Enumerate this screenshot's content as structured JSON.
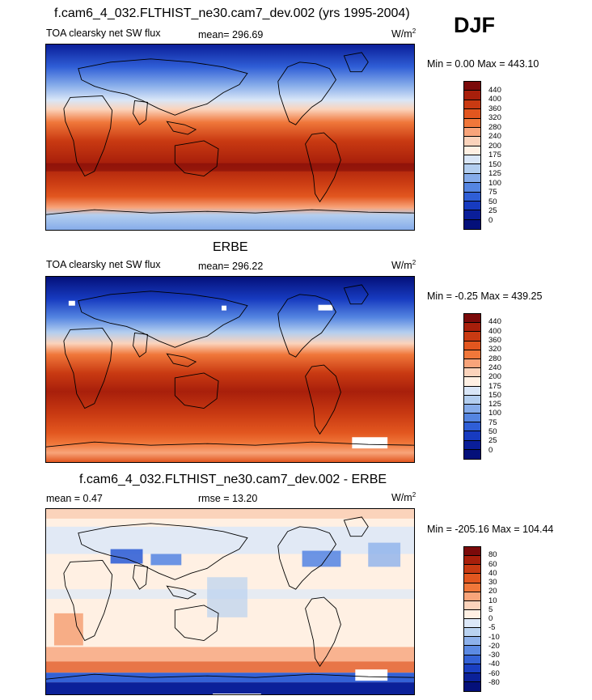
{
  "season": "DJF",
  "panels": [
    {
      "title": "f.cam6_4_032.FLTHIST_ne30.cam7_dev.002 (yrs 1995-2004)",
      "variable": "TOA clearsky net SW flux",
      "stat_left": "",
      "mean_text": "mean= 296.69",
      "units": "W/m",
      "units_sup": "2",
      "minmax": "Min =   0.00 Max = 443.10",
      "colorbar": {
        "labels": [
          "440",
          "400",
          "360",
          "320",
          "280",
          "240",
          "200",
          "175",
          "150",
          "125",
          "100",
          "75",
          "50",
          "25",
          "0"
        ],
        "colors": [
          "#7b0a0a",
          "#a81f0b",
          "#c93a12",
          "#e2561f",
          "#f0773a",
          "#f8a47a",
          "#fbd3bb",
          "#fff0e3",
          "#d9e6f7",
          "#b3ceef",
          "#86acea",
          "#5585e1",
          "#2f5ed6",
          "#173bc0",
          "#0a1e99",
          "#04107a"
        ]
      }
    },
    {
      "title": "ERBE",
      "variable": "TOA clearsky net SW flux",
      "stat_left": "",
      "mean_text": "mean= 296.22",
      "units": "W/m",
      "units_sup": "2",
      "minmax": "Min =  -0.25 Max = 439.25",
      "colorbar": {
        "labels": [
          "440",
          "400",
          "360",
          "320",
          "280",
          "240",
          "200",
          "175",
          "150",
          "125",
          "100",
          "75",
          "50",
          "25",
          "0"
        ],
        "colors": [
          "#7b0a0a",
          "#a81f0b",
          "#c93a12",
          "#e2561f",
          "#f0773a",
          "#f8a47a",
          "#fbd3bb",
          "#fff0e3",
          "#d9e6f7",
          "#b3ceef",
          "#86acea",
          "#5585e1",
          "#2f5ed6",
          "#173bc0",
          "#0a1e99",
          "#04107a"
        ]
      }
    },
    {
      "title": "f.cam6_4_032.FLTHIST_ne30.cam7_dev.002 - ERBE",
      "variable": "",
      "stat_left": "mean =   0.47",
      "mean_text": "rmse =  13.20",
      "units": "W/m",
      "units_sup": "2",
      "minmax": "Min = -205.16 Max = 104.44",
      "colorbar": {
        "labels": [
          "80",
          "60",
          "40",
          "30",
          "20",
          "10",
          "5",
          "0",
          "-5",
          "-10",
          "-20",
          "-30",
          "-40",
          "-60",
          "-80"
        ],
        "colors": [
          "#7b0a0a",
          "#a81f0b",
          "#c93a12",
          "#e2561f",
          "#f0773a",
          "#f8a47a",
          "#fbd3bb",
          "#fff0e3",
          "#dce8f8",
          "#b9d2f0",
          "#8db1eb",
          "#5c8ae3",
          "#3462d6",
          "#1a3fc2",
          "#0b2199",
          "#04107a"
        ]
      }
    }
  ]
}
